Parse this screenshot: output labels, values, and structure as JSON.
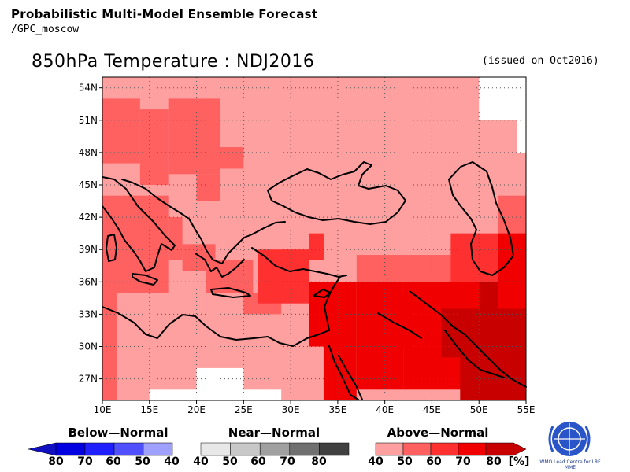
{
  "header": {
    "line1": "Probabilistic Multi-Model Ensemble Forecast",
    "line2": "/GPC_moscow"
  },
  "title": "850hPa Temperature : NDJ2016",
  "issued": "(issued on Oct2016)",
  "colors": {
    "above40": "#ffa0a0",
    "above50": "#ff6060",
    "above60": "#ff3030",
    "above70": "#f00000",
    "above80": "#c80000",
    "below80": "#1010c0",
    "below70": "#0000e0",
    "below60": "#2020ff",
    "below50": "#5050ff",
    "below40": "#a0a0ff",
    "near40": "#e8e8e8",
    "near50": "#c8c8c8",
    "near60": "#a0a0a0",
    "near70": "#707070",
    "near80": "#404040"
  },
  "map": {
    "lon_range": [
      10,
      55
    ],
    "lat_range": [
      25,
      55
    ],
    "lon_ticks": [
      "10E",
      "15E",
      "20E",
      "25E",
      "30E",
      "35E",
      "40E",
      "45E",
      "50E",
      "55E"
    ],
    "lat_ticks": [
      "54N",
      "51N",
      "48N",
      "45N",
      "42N",
      "39N",
      "36N",
      "33N",
      "30N",
      "27N"
    ],
    "grid": "dotted"
  },
  "legend": {
    "below": {
      "title": "Below—Normal",
      "values": [
        "80",
        "70",
        "60",
        "50",
        "40"
      ]
    },
    "near": {
      "title": "Near—Normal",
      "values": [
        "40",
        "50",
        "60",
        "70",
        "80"
      ]
    },
    "above": {
      "title": "Above—Normal",
      "values": [
        "40",
        "50",
        "60",
        "70",
        "80"
      ],
      "unit": "[%]"
    }
  },
  "logo": {
    "caption": "WMO Lead Centre for LRF MME"
  }
}
